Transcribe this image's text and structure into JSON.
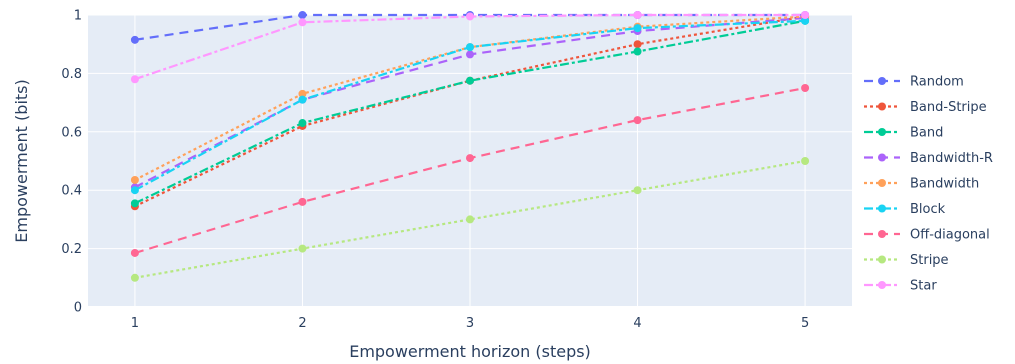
{
  "chart_data": {
    "type": "line",
    "xlabel": "Empowerment horizon (steps)",
    "ylabel": "Empowerment (bits)",
    "x": [
      1,
      2,
      3,
      4,
      5
    ],
    "xlim": [
      0.72,
      5.28
    ],
    "ylim": [
      0,
      1
    ],
    "xticks": [
      "1",
      "2",
      "3",
      "4",
      "5"
    ],
    "yticks": [
      "0",
      "0.2",
      "0.4",
      "0.6",
      "0.8",
      "1"
    ],
    "grid": true,
    "legend_position": "right",
    "series": [
      {
        "name": "Random",
        "color": "#636efa",
        "dash": "dash",
        "values": [
          0.915,
          1.0,
          1.0,
          1.0,
          1.0
        ]
      },
      {
        "name": "Band-Stripe",
        "color": "#ef553b",
        "dash": "dot",
        "values": [
          0.345,
          0.62,
          0.775,
          0.9,
          0.995
        ]
      },
      {
        "name": "Band",
        "color": "#00cc96",
        "dash": "dashdot",
        "values": [
          0.355,
          0.63,
          0.775,
          0.875,
          0.98
        ]
      },
      {
        "name": "Bandwidth-R",
        "color": "#ab63fa",
        "dash": "dash",
        "values": [
          0.41,
          0.71,
          0.865,
          0.945,
          0.99
        ]
      },
      {
        "name": "Bandwidth",
        "color": "#ffa15a",
        "dash": "dot",
        "values": [
          0.435,
          0.73,
          0.89,
          0.96,
          0.995
        ]
      },
      {
        "name": "Block",
        "color": "#19d3f3",
        "dash": "dashdot",
        "values": [
          0.4,
          0.71,
          0.89,
          0.955,
          0.98
        ]
      },
      {
        "name": "Off-diagonal",
        "color": "#ff6692",
        "dash": "dash",
        "values": [
          0.185,
          0.36,
          0.51,
          0.64,
          0.75
        ]
      },
      {
        "name": "Stripe",
        "color": "#b6e880",
        "dash": "dot",
        "values": [
          0.1,
          0.2,
          0.3,
          0.4,
          0.5
        ]
      },
      {
        "name": "Star",
        "color": "#ff97ff",
        "dash": "dashdot",
        "values": [
          0.78,
          0.975,
          0.995,
          1.0,
          1.0
        ]
      }
    ]
  }
}
